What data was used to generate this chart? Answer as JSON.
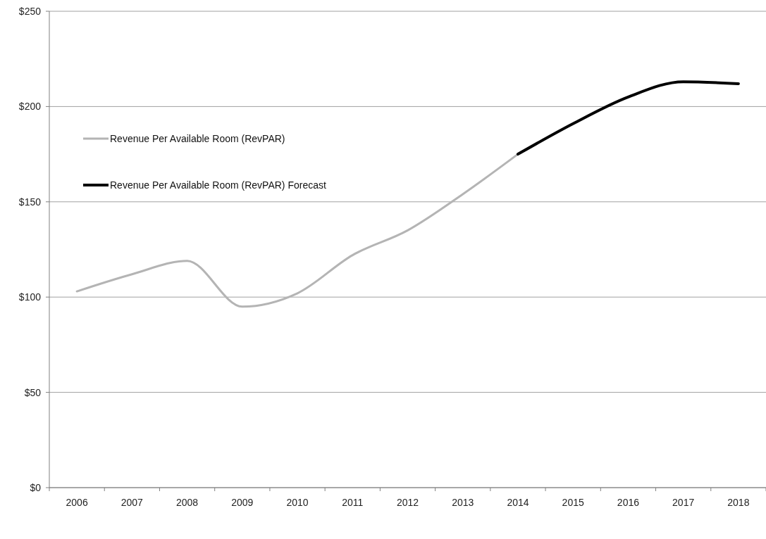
{
  "chart_data": {
    "type": "line",
    "categories": [
      "2006",
      "2007",
      "2008",
      "2009",
      "2010",
      "2011",
      "2012",
      "2013",
      "2014",
      "2015",
      "2016",
      "2017",
      "2018"
    ],
    "series": [
      {
        "name": "Revenue Per Available Room (RevPAR)",
        "color": "#b4b4b4",
        "values": [
          103,
          112,
          119,
          95,
          102,
          122,
          135,
          154,
          175,
          null,
          null,
          null,
          null
        ]
      },
      {
        "name": "Revenue Per Available Room (RevPAR) Forecast",
        "color": "#000000",
        "values": [
          null,
          null,
          null,
          null,
          null,
          null,
          null,
          null,
          175,
          191,
          205,
          213,
          212
        ]
      }
    ],
    "ylim": [
      0,
      250
    ],
    "yticks": [
      {
        "value": 0,
        "label": "$0"
      },
      {
        "value": 50,
        "label": "$50"
      },
      {
        "value": 100,
        "label": "$100"
      },
      {
        "value": 150,
        "label": "$150"
      },
      {
        "value": 200,
        "label": "$200"
      },
      {
        "value": 250,
        "label": "$250"
      }
    ],
    "grid": "y",
    "legend": "top left"
  }
}
